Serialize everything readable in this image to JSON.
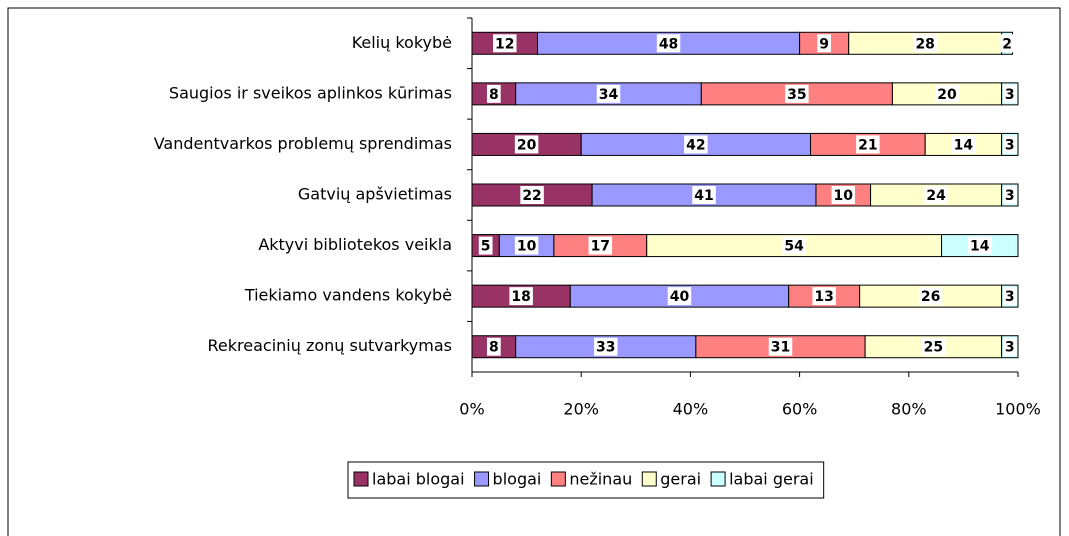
{
  "chart_data": {
    "type": "bar",
    "orientation": "horizontal",
    "stacked": true,
    "categories": [
      "Kelių kokybė",
      "Saugios ir sveikos aplinkos kūrimas",
      "Vandentvarkos problemų sprendimas",
      "Gatvių apšvietimas",
      "Aktyvi bibliotekos veikla",
      "Tiekiamo vandens kokybė",
      "Rekreacinių zonų sutvarkymas"
    ],
    "series": [
      {
        "name": "labai blogai",
        "color": "#993366",
        "values": [
          12,
          8,
          20,
          22,
          5,
          18,
          8
        ]
      },
      {
        "name": "blogai",
        "color": "#9999ff",
        "values": [
          48,
          34,
          42,
          41,
          10,
          40,
          33
        ]
      },
      {
        "name": "nežinau",
        "color": "#ff8080",
        "values": [
          9,
          35,
          21,
          10,
          17,
          13,
          31
        ]
      },
      {
        "name": "gerai",
        "color": "#ffffcc",
        "values": [
          28,
          20,
          14,
          24,
          54,
          26,
          25
        ]
      },
      {
        "name": "labai gerai",
        "color": "#ccffff",
        "values": [
          2,
          3,
          3,
          3,
          14,
          3,
          3
        ]
      }
    ],
    "xlim": [
      0,
      100
    ],
    "xticks": [
      {
        "value": 0,
        "label": "0%"
      },
      {
        "value": 20,
        "label": "20%"
      },
      {
        "value": 40,
        "label": "40%"
      },
      {
        "value": 60,
        "label": "60%"
      },
      {
        "value": 80,
        "label": "80%"
      },
      {
        "value": 100,
        "label": "100%"
      }
    ],
    "legend": "bottom"
  }
}
